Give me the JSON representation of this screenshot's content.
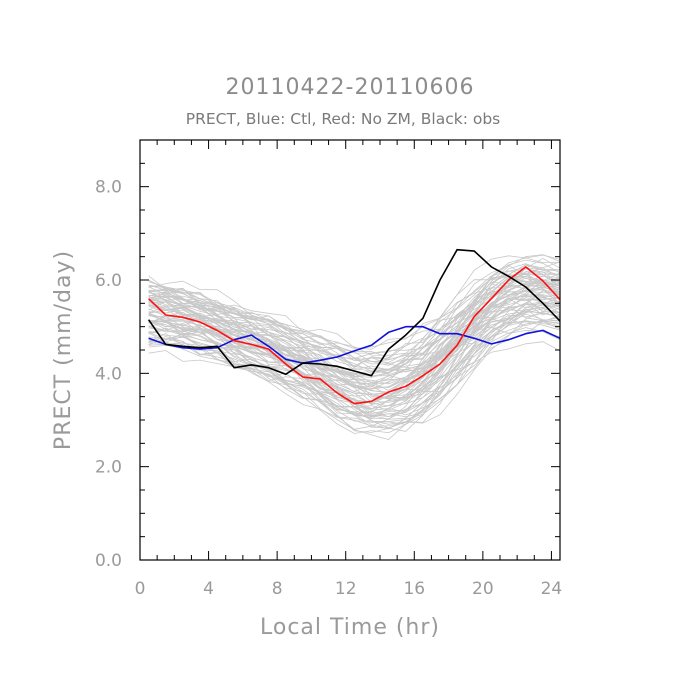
{
  "chart_data": {
    "type": "line",
    "title": "20110422-20110606",
    "subtitle": "PRECT, Blue: Ctl, Red: No ZM, Black: obs",
    "xlabel": "Local Time (hr)",
    "ylabel": "PRECT (mm/day)",
    "xlim": [
      0,
      24.5
    ],
    "ylim": [
      0,
      9.0
    ],
    "xticks": [
      0,
      4,
      8,
      12,
      16,
      20,
      24
    ],
    "yticks": [
      0.0,
      2.0,
      4.0,
      6.0,
      8.0
    ],
    "xtick_labels": [
      "0",
      "4",
      "8",
      "12",
      "16",
      "20",
      "24"
    ],
    "ytick_labels": [
      "0.0",
      "2.0",
      "4.0",
      "6.0",
      "8.0"
    ],
    "x": [
      0.5,
      1.5,
      2.5,
      3.5,
      4.5,
      5.5,
      6.5,
      7.5,
      8.5,
      9.5,
      10.5,
      11.5,
      12.5,
      13.5,
      14.5,
      15.5,
      16.5,
      17.5,
      18.5,
      19.5,
      20.5,
      21.5,
      22.5,
      23.5,
      24.5
    ],
    "series": [
      {
        "name": "Ctl",
        "color": "#1010dd",
        "values": [
          4.75,
          4.62,
          4.55,
          4.52,
          4.55,
          4.72,
          4.82,
          4.58,
          4.3,
          4.22,
          4.28,
          4.35,
          4.48,
          4.6,
          4.88,
          5.0,
          5.0,
          4.85,
          4.85,
          4.75,
          4.63,
          4.72,
          4.85,
          4.92,
          4.75
        ]
      },
      {
        "name": "No ZM",
        "color": "#ff1111",
        "values": [
          5.6,
          5.25,
          5.2,
          5.1,
          4.92,
          4.7,
          4.62,
          4.52,
          4.2,
          3.92,
          3.88,
          3.58,
          3.35,
          3.4,
          3.6,
          3.72,
          3.95,
          4.2,
          4.6,
          5.22,
          5.6,
          6.0,
          6.28,
          5.98,
          5.58
        ]
      },
      {
        "name": "obs",
        "color": "#000000",
        "values": [
          5.15,
          4.62,
          4.58,
          4.55,
          4.58,
          4.12,
          4.18,
          4.12,
          3.98,
          4.22,
          4.2,
          4.15,
          4.05,
          3.95,
          4.52,
          4.82,
          5.18,
          6.0,
          6.65,
          6.62,
          6.28,
          6.08,
          5.85,
          5.5,
          5.12
        ]
      }
    ],
    "ensemble": {
      "name": "ensemble members",
      "color": "#c8c8c8",
      "count": 80,
      "mean": [
        5.3,
        5.28,
        5.22,
        5.1,
        4.95,
        4.8,
        4.66,
        4.52,
        4.36,
        4.18,
        3.98,
        3.78,
        3.62,
        3.54,
        3.55,
        3.66,
        3.9,
        4.25,
        4.65,
        5.05,
        5.4,
        5.62,
        5.75,
        5.72,
        5.6
      ]
    }
  }
}
